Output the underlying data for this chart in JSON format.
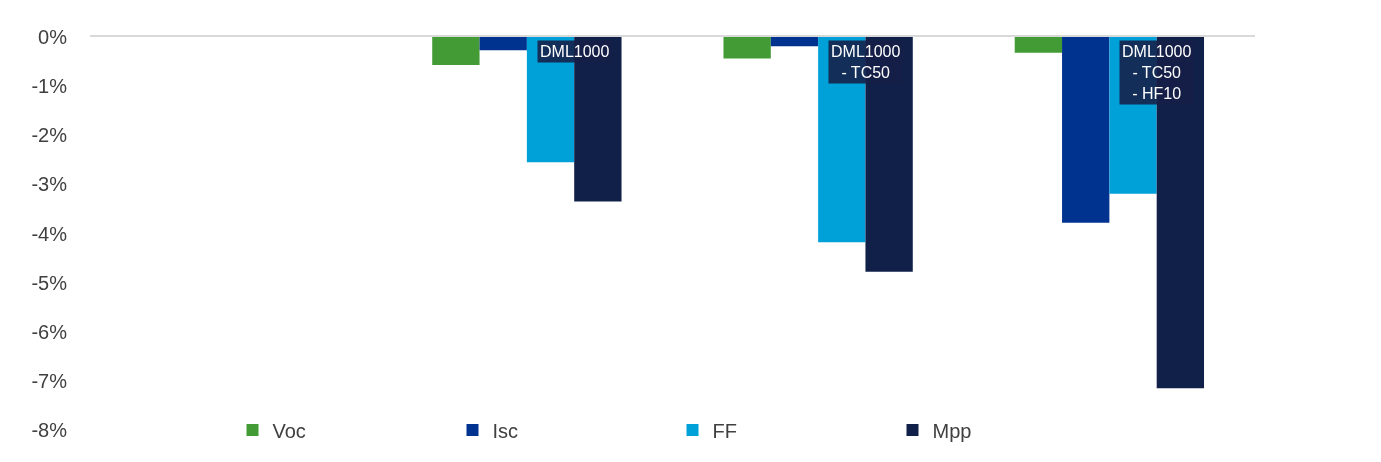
{
  "chart_data": {
    "type": "bar",
    "categories": [
      null,
      "DML1000",
      "DML1000\n- TC50",
      "DML1000\n- TC50\n- HF10"
    ],
    "series": [
      {
        "name": "Voc",
        "color": "#439b35",
        "values": [
          null,
          -0.57,
          -0.44,
          -0.32
        ]
      },
      {
        "name": "Isc",
        "color": "#00338f",
        "values": [
          null,
          -0.27,
          -0.19,
          -3.78
        ]
      },
      {
        "name": "FF",
        "color": "#00a1d8",
        "values": [
          null,
          -2.55,
          -4.18,
          -3.19
        ]
      },
      {
        "name": "Mpp",
        "color": "#112049",
        "values": [
          null,
          -3.35,
          -4.78,
          -7.15
        ]
      }
    ],
    "ylim": [
      -8,
      0
    ],
    "yticks": [
      {
        "value": 0,
        "label": "0%"
      },
      {
        "value": -1,
        "label": "-1%"
      },
      {
        "value": -2,
        "label": "-2%"
      },
      {
        "value": -3,
        "label": "-3%"
      },
      {
        "value": -4,
        "label": "-4%"
      },
      {
        "value": -5,
        "label": "-5%"
      },
      {
        "value": -6,
        "label": "-6%"
      },
      {
        "value": -7,
        "label": "-7%"
      },
      {
        "value": -8,
        "label": "-8%"
      }
    ],
    "legend": "bottom"
  }
}
